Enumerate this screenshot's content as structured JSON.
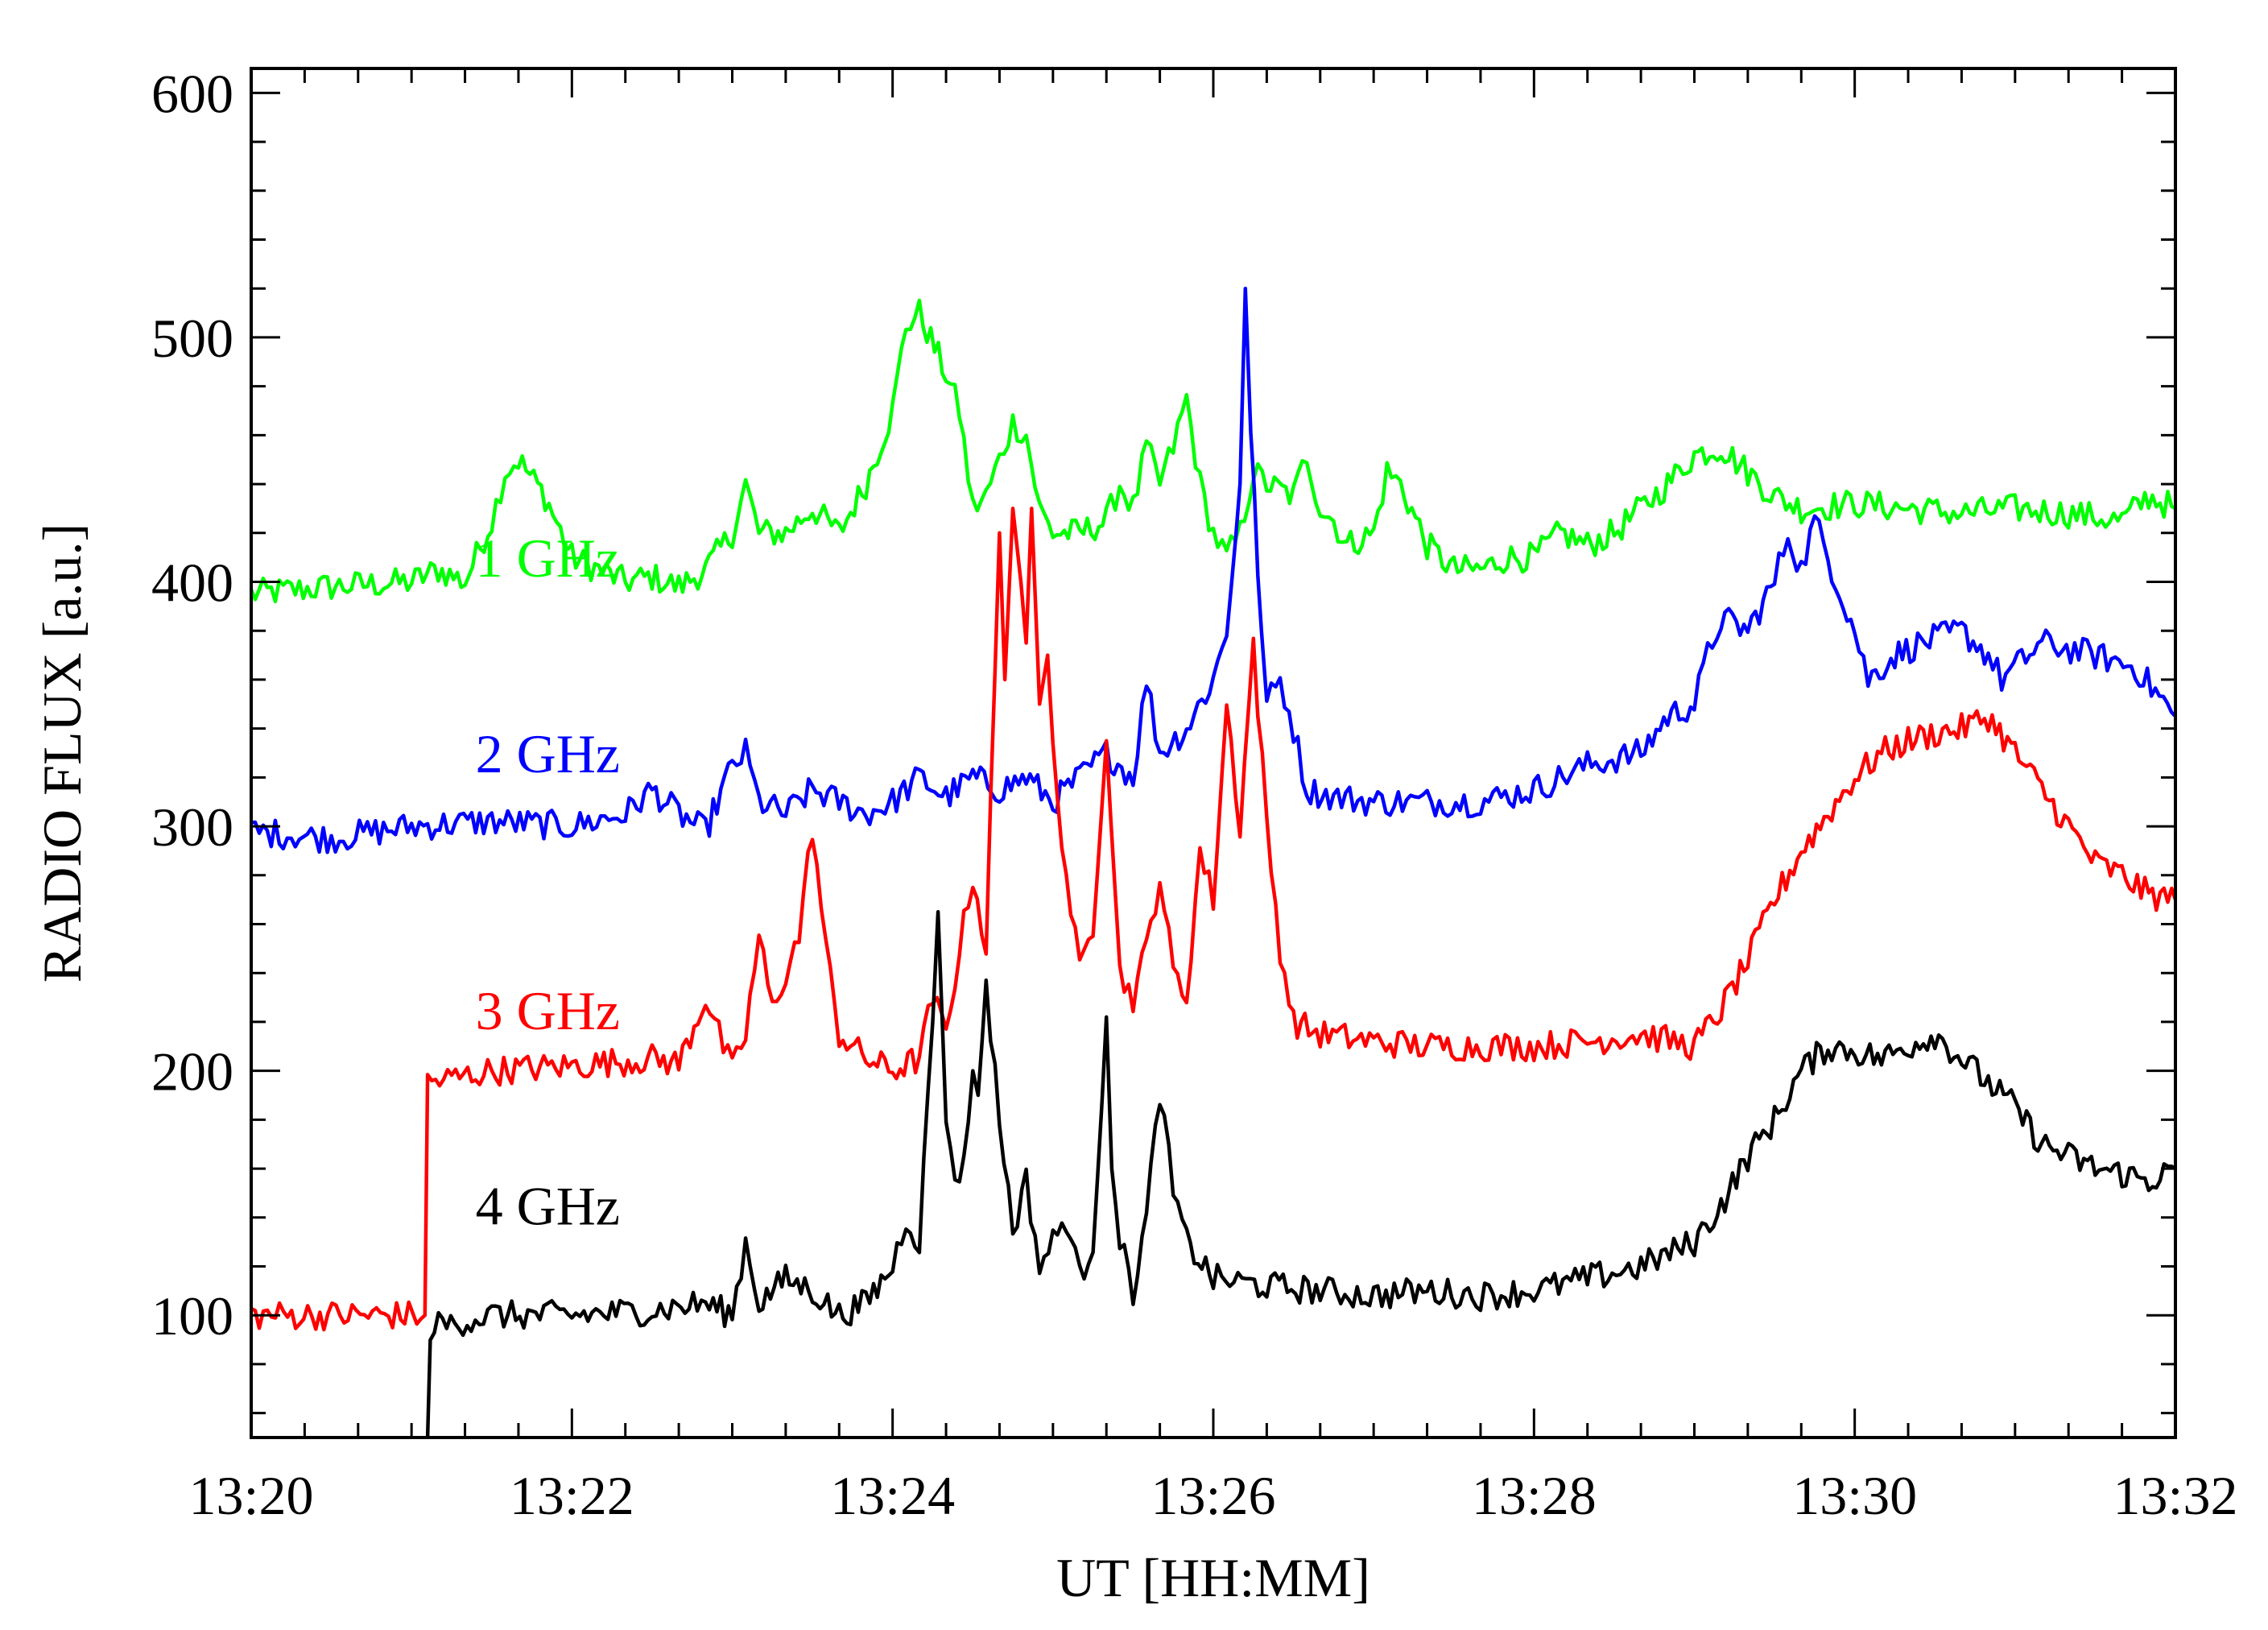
{
  "chart_data": {
    "type": "line",
    "xlabel": "UT [HH:MM]",
    "ylabel": "RADIO FLUX [a.u.]",
    "xlim": [
      "13:20",
      "13:32"
    ],
    "ylim": [
      50,
      610
    ],
    "xticks": [
      "13:20",
      "13:22",
      "13:24",
      "13:26",
      "13:28",
      "13:30",
      "13:32"
    ],
    "yticks": [
      100,
      200,
      300,
      400,
      500,
      600
    ],
    "grid": false,
    "legend": "inline labels on left",
    "series": [
      {
        "name": "1 GHz",
        "color": "#00ff00",
        "points": [
          [
            "13:20:00",
            395
          ],
          [
            "13:20:30",
            398
          ],
          [
            "13:21:00",
            400
          ],
          [
            "13:21:10",
            405
          ],
          [
            "13:21:20",
            400
          ],
          [
            "13:21:30",
            425
          ],
          [
            "13:21:35",
            445
          ],
          [
            "13:21:40",
            450
          ],
          [
            "13:21:50",
            435
          ],
          [
            "13:22:00",
            410
          ],
          [
            "13:22:10",
            405
          ],
          [
            "13:22:20",
            400
          ],
          [
            "13:22:30",
            402
          ],
          [
            "13:22:40",
            398
          ],
          [
            "13:22:50",
            405
          ],
          [
            "13:23:00",
            420
          ],
          [
            "13:23:05",
            440
          ],
          [
            "13:23:10",
            420
          ],
          [
            "13:23:20",
            420
          ],
          [
            "13:23:30",
            430
          ],
          [
            "13:23:40",
            420
          ],
          [
            "13:23:50",
            440
          ],
          [
            "13:24:00",
            470
          ],
          [
            "13:24:05",
            505
          ],
          [
            "13:24:10",
            510
          ],
          [
            "13:24:20",
            485
          ],
          [
            "13:24:25",
            470
          ],
          [
            "13:24:30",
            430
          ],
          [
            "13:24:35",
            435
          ],
          [
            "13:24:40",
            450
          ],
          [
            "13:24:45",
            465
          ],
          [
            "13:24:50",
            460
          ],
          [
            "13:24:55",
            430
          ],
          [
            "13:25:00",
            420
          ],
          [
            "13:25:10",
            420
          ],
          [
            "13:25:20",
            425
          ],
          [
            "13:25:25",
            440
          ],
          [
            "13:25:30",
            430
          ],
          [
            "13:25:35",
            455
          ],
          [
            "13:25:40",
            440
          ],
          [
            "13:25:45",
            455
          ],
          [
            "13:25:50",
            475
          ],
          [
            "13:25:55",
            440
          ],
          [
            "13:26:00",
            420
          ],
          [
            "13:26:05",
            410
          ],
          [
            "13:26:10",
            420
          ],
          [
            "13:26:15",
            445
          ],
          [
            "13:26:20",
            440
          ],
          [
            "13:26:30",
            435
          ],
          [
            "13:26:35",
            452
          ],
          [
            "13:26:40",
            430
          ],
          [
            "13:26:45",
            425
          ],
          [
            "13:26:50",
            415
          ],
          [
            "13:27:00",
            420
          ],
          [
            "13:27:05",
            445
          ],
          [
            "13:27:10",
            440
          ],
          [
            "13:27:20",
            415
          ],
          [
            "13:27:30",
            405
          ],
          [
            "13:27:40",
            405
          ],
          [
            "13:27:50",
            410
          ],
          [
            "13:28:00",
            410
          ],
          [
            "13:28:10",
            420
          ],
          [
            "13:28:20",
            415
          ],
          [
            "13:28:30",
            420
          ],
          [
            "13:28:40",
            430
          ],
          [
            "13:28:50",
            440
          ],
          [
            "13:29:00",
            452
          ],
          [
            "13:29:10",
            455
          ],
          [
            "13:29:20",
            445
          ],
          [
            "13:29:30",
            435
          ],
          [
            "13:29:40",
            430
          ],
          [
            "13:30:00",
            432
          ],
          [
            "13:30:20",
            430
          ],
          [
            "13:30:40",
            428
          ],
          [
            "13:31:00",
            430
          ],
          [
            "13:31:20",
            428
          ],
          [
            "13:31:40",
            425
          ],
          [
            "13:31:50",
            435
          ],
          [
            "13:32:00",
            430
          ]
        ]
      },
      {
        "name": "2 GHz",
        "color": "#0000ff",
        "points": [
          [
            "13:20:00",
            298
          ],
          [
            "13:20:30",
            295
          ],
          [
            "13:21:00",
            300
          ],
          [
            "13:21:30",
            302
          ],
          [
            "13:22:00",
            300
          ],
          [
            "13:22:20",
            305
          ],
          [
            "13:22:30",
            315
          ],
          [
            "13:22:40",
            305
          ],
          [
            "13:22:50",
            298
          ],
          [
            "13:23:00",
            325
          ],
          [
            "13:23:05",
            330
          ],
          [
            "13:23:10",
            310
          ],
          [
            "13:23:20",
            305
          ],
          [
            "13:23:30",
            315
          ],
          [
            "13:23:40",
            310
          ],
          [
            "13:23:50",
            305
          ],
          [
            "13:24:00",
            310
          ],
          [
            "13:24:10",
            320
          ],
          [
            "13:24:20",
            312
          ],
          [
            "13:24:30",
            320
          ],
          [
            "13:24:40",
            315
          ],
          [
            "13:24:50",
            320
          ],
          [
            "13:25:00",
            310
          ],
          [
            "13:25:10",
            320
          ],
          [
            "13:25:20",
            330
          ],
          [
            "13:25:30",
            320
          ],
          [
            "13:25:35",
            360
          ],
          [
            "13:25:40",
            330
          ],
          [
            "13:25:50",
            340
          ],
          [
            "13:26:00",
            360
          ],
          [
            "13:26:05",
            380
          ],
          [
            "13:26:10",
            440
          ],
          [
            "13:26:12",
            520
          ],
          [
            "13:26:14",
            460
          ],
          [
            "13:26:18",
            380
          ],
          [
            "13:26:20",
            350
          ],
          [
            "13:26:25",
            360
          ],
          [
            "13:26:30",
            340
          ],
          [
            "13:26:35",
            315
          ],
          [
            "13:26:45",
            312
          ],
          [
            "13:27:00",
            310
          ],
          [
            "13:27:20",
            310
          ],
          [
            "13:27:40",
            310
          ],
          [
            "13:28:00",
            315
          ],
          [
            "13:28:20",
            325
          ],
          [
            "13:28:40",
            330
          ],
          [
            "13:28:50",
            345
          ],
          [
            "13:29:00",
            350
          ],
          [
            "13:29:05",
            370
          ],
          [
            "13:29:10",
            385
          ],
          [
            "13:29:20",
            380
          ],
          [
            "13:29:30",
            400
          ],
          [
            "13:29:35",
            420
          ],
          [
            "13:29:40",
            405
          ],
          [
            "13:29:45",
            425
          ],
          [
            "13:29:50",
            410
          ],
          [
            "13:30:00",
            380
          ],
          [
            "13:30:05",
            360
          ],
          [
            "13:30:15",
            370
          ],
          [
            "13:30:25",
            375
          ],
          [
            "13:30:40",
            380
          ],
          [
            "13:30:50",
            370
          ],
          [
            "13:30:55",
            360
          ],
          [
            "13:31:10",
            375
          ],
          [
            "13:31:30",
            370
          ],
          [
            "13:31:45",
            365
          ],
          [
            "13:32:00",
            345
          ]
        ]
      },
      {
        "name": "3 GHz",
        "color": "#ff0000",
        "points": [
          [
            "13:20:00",
            100
          ],
          [
            "13:21:05",
            100
          ],
          [
            "13:21:06",
            195
          ],
          [
            "13:21:30",
            200
          ],
          [
            "13:22:00",
            202
          ],
          [
            "13:22:30",
            205
          ],
          [
            "13:22:40",
            203
          ],
          [
            "13:22:50",
            230
          ],
          [
            "13:22:55",
            215
          ],
          [
            "13:23:00",
            200
          ],
          [
            "13:23:05",
            215
          ],
          [
            "13:23:10",
            255
          ],
          [
            "13:23:15",
            225
          ],
          [
            "13:23:20",
            240
          ],
          [
            "13:23:25",
            255
          ],
          [
            "13:23:30",
            300
          ],
          [
            "13:23:35",
            250
          ],
          [
            "13:23:40",
            215
          ],
          [
            "13:23:50",
            205
          ],
          [
            "13:24:00",
            200
          ],
          [
            "13:24:10",
            205
          ],
          [
            "13:24:15",
            230
          ],
          [
            "13:24:20",
            215
          ],
          [
            "13:24:25",
            250
          ],
          [
            "13:24:30",
            280
          ],
          [
            "13:24:35",
            250
          ],
          [
            "13:24:40",
            420
          ],
          [
            "13:24:42",
            360
          ],
          [
            "13:24:45",
            430
          ],
          [
            "13:24:48",
            400
          ],
          [
            "13:24:50",
            375
          ],
          [
            "13:24:52",
            430
          ],
          [
            "13:24:55",
            350
          ],
          [
            "13:24:58",
            370
          ],
          [
            "13:25:00",
            330
          ],
          [
            "13:25:05",
            280
          ],
          [
            "13:25:10",
            240
          ],
          [
            "13:25:15",
            260
          ],
          [
            "13:25:20",
            340
          ],
          [
            "13:25:25",
            240
          ],
          [
            "13:25:30",
            230
          ],
          [
            "13:25:35",
            250
          ],
          [
            "13:25:40",
            280
          ],
          [
            "13:25:45",
            240
          ],
          [
            "13:25:50",
            230
          ],
          [
            "13:25:55",
            290
          ],
          [
            "13:26:00",
            270
          ],
          [
            "13:26:05",
            350
          ],
          [
            "13:26:10",
            300
          ],
          [
            "13:26:15",
            375
          ],
          [
            "13:26:20",
            300
          ],
          [
            "13:26:25",
            250
          ],
          [
            "13:26:30",
            220
          ],
          [
            "13:26:40",
            215
          ],
          [
            "13:27:00",
            212
          ],
          [
            "13:27:20",
            210
          ],
          [
            "13:27:40",
            210
          ],
          [
            "13:28:00",
            210
          ],
          [
            "13:28:20",
            212
          ],
          [
            "13:28:40",
            215
          ],
          [
            "13:29:00",
            210
          ],
          [
            "13:29:10",
            225
          ],
          [
            "13:29:20",
            245
          ],
          [
            "13:29:30",
            270
          ],
          [
            "13:29:40",
            290
          ],
          [
            "13:29:50",
            305
          ],
          [
            "13:30:00",
            320
          ],
          [
            "13:30:10",
            330
          ],
          [
            "13:30:20",
            335
          ],
          [
            "13:30:30",
            338
          ],
          [
            "13:30:40",
            340
          ],
          [
            "13:30:50",
            345
          ],
          [
            "13:31:00",
            330
          ],
          [
            "13:31:10",
            315
          ],
          [
            "13:31:20",
            300
          ],
          [
            "13:31:30",
            285
          ],
          [
            "13:31:40",
            280
          ],
          [
            "13:31:50",
            272
          ],
          [
            "13:32:00",
            270
          ]
        ]
      },
      {
        "name": "4 GHz",
        "color": "#000000",
        "points": [
          [
            "13:21:06",
            50
          ],
          [
            "13:21:07",
            95
          ],
          [
            "13:21:30",
            100
          ],
          [
            "13:22:00",
            100
          ],
          [
            "13:22:30",
            102
          ],
          [
            "13:22:50",
            105
          ],
          [
            "13:23:00",
            100
          ],
          [
            "13:23:05",
            130
          ],
          [
            "13:23:10",
            105
          ],
          [
            "13:23:20",
            115
          ],
          [
            "13:23:30",
            110
          ],
          [
            "13:23:40",
            100
          ],
          [
            "13:23:50",
            105
          ],
          [
            "13:24:00",
            120
          ],
          [
            "13:24:05",
            140
          ],
          [
            "13:24:10",
            130
          ],
          [
            "13:24:15",
            220
          ],
          [
            "13:24:17",
            265
          ],
          [
            "13:24:20",
            180
          ],
          [
            "13:24:25",
            150
          ],
          [
            "13:24:30",
            200
          ],
          [
            "13:24:32",
            190
          ],
          [
            "13:24:35",
            235
          ],
          [
            "13:24:40",
            180
          ],
          [
            "13:24:45",
            135
          ],
          [
            "13:24:50",
            155
          ],
          [
            "13:24:55",
            120
          ],
          [
            "13:25:00",
            130
          ],
          [
            "13:25:05",
            140
          ],
          [
            "13:25:10",
            115
          ],
          [
            "13:25:15",
            130
          ],
          [
            "13:25:20",
            222
          ],
          [
            "13:25:22",
            160
          ],
          [
            "13:25:25",
            130
          ],
          [
            "13:25:30",
            110
          ],
          [
            "13:25:35",
            140
          ],
          [
            "13:25:40",
            192
          ],
          [
            "13:25:45",
            150
          ],
          [
            "13:25:50",
            130
          ],
          [
            "13:26:00",
            115
          ],
          [
            "13:26:20",
            112
          ],
          [
            "13:26:40",
            110
          ],
          [
            "13:27:00",
            108
          ],
          [
            "13:27:20",
            110
          ],
          [
            "13:27:40",
            108
          ],
          [
            "13:28:00",
            110
          ],
          [
            "13:28:20",
            115
          ],
          [
            "13:28:40",
            120
          ],
          [
            "13:29:00",
            130
          ],
          [
            "13:29:10",
            145
          ],
          [
            "13:29:20",
            165
          ],
          [
            "13:29:30",
            180
          ],
          [
            "13:29:40",
            200
          ],
          [
            "13:29:50",
            210
          ],
          [
            "13:30:00",
            208
          ],
          [
            "13:30:10",
            205
          ],
          [
            "13:30:20",
            210
          ],
          [
            "13:30:30",
            215
          ],
          [
            "13:30:40",
            205
          ],
          [
            "13:30:50",
            195
          ],
          [
            "13:31:00",
            185
          ],
          [
            "13:31:10",
            170
          ],
          [
            "13:31:20",
            165
          ],
          [
            "13:31:30",
            160
          ],
          [
            "13:31:40",
            158
          ],
          [
            "13:31:50",
            155
          ],
          [
            "13:32:00",
            160
          ]
        ]
      }
    ]
  }
}
